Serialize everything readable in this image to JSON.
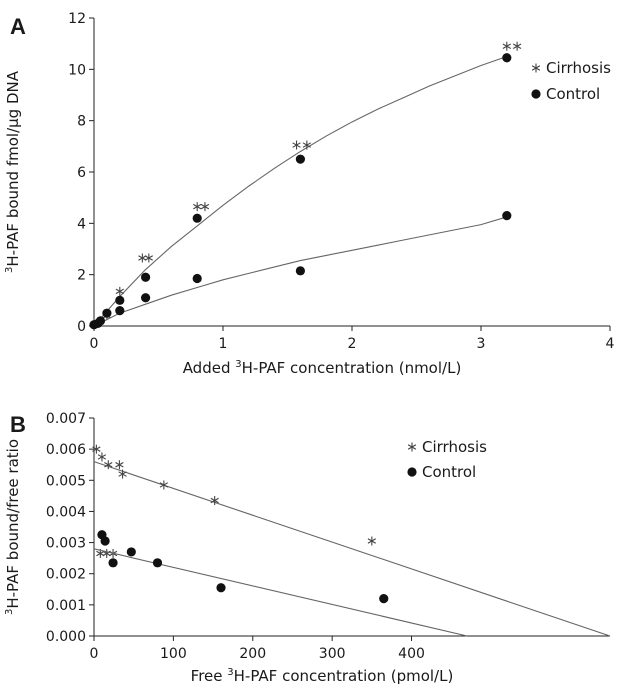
{
  "chart_data": [
    {
      "panel": "A",
      "type": "scatter",
      "xlabel": {
        "pre": "Added ",
        "sup": "3",
        "post": "H-PAF concentration (nmol/L)"
      },
      "ylabel": {
        "sup": "3",
        "post": "H-PAF bound fmol/μg DNA"
      },
      "xlim": [
        0,
        4
      ],
      "ylim": [
        0,
        12
      ],
      "x_ticks": [
        0,
        1,
        2,
        3,
        4
      ],
      "y_ticks": [
        0,
        2,
        4,
        6,
        8,
        10,
        12
      ],
      "legend_position": "top-right",
      "series": [
        {
          "name": "Cirrhosis",
          "marker": "asterisk",
          "points": [
            [
              0.02,
              0.1
            ],
            [
              0.05,
              0.2
            ],
            [
              0.1,
              0.4
            ],
            [
              0.2,
              1.35
            ],
            [
              0.375,
              2.65
            ],
            [
              0.425,
              2.65
            ],
            [
              0.8,
              4.65
            ],
            [
              0.86,
              4.65
            ],
            [
              1.57,
              7.05
            ],
            [
              1.65,
              7.05
            ],
            [
              3.2,
              10.9
            ],
            [
              3.28,
              10.9
            ]
          ],
          "fit": [
            [
              0,
              0
            ],
            [
              0.2,
              1.15
            ],
            [
              0.4,
              2.2
            ],
            [
              0.6,
              3.1
            ],
            [
              0.8,
              3.9
            ],
            [
              1.0,
              4.7
            ],
            [
              1.2,
              5.45
            ],
            [
              1.4,
              6.15
            ],
            [
              1.6,
              6.8
            ],
            [
              1.8,
              7.4
            ],
            [
              2.0,
              7.95
            ],
            [
              2.2,
              8.45
            ],
            [
              2.4,
              8.9
            ],
            [
              2.6,
              9.35
            ],
            [
              2.8,
              9.75
            ],
            [
              3.0,
              10.15
            ],
            [
              3.2,
              10.5
            ]
          ]
        },
        {
          "name": "Control",
          "marker": "dot",
          "points": [
            [
              0,
              0.05
            ],
            [
              0.03,
              0.1
            ],
            [
              0.05,
              0.2
            ],
            [
              0.1,
              0.5
            ],
            [
              0.2,
              0.6
            ],
            [
              0.2,
              1.0
            ],
            [
              0.4,
              1.1
            ],
            [
              0.4,
              1.9
            ],
            [
              0.8,
              1.85
            ],
            [
              0.8,
              4.2
            ],
            [
              1.6,
              2.15
            ],
            [
              1.6,
              6.5
            ],
            [
              3.2,
              4.3
            ],
            [
              3.2,
              10.45
            ]
          ],
          "fit": [
            [
              0,
              0
            ],
            [
              0.2,
              0.5
            ],
            [
              0.4,
              0.85
            ],
            [
              0.6,
              1.2
            ],
            [
              0.8,
              1.5
            ],
            [
              1.0,
              1.8
            ],
            [
              1.2,
              2.05
            ],
            [
              1.4,
              2.3
            ],
            [
              1.6,
              2.55
            ],
            [
              1.8,
              2.75
            ],
            [
              2.0,
              2.95
            ],
            [
              2.2,
              3.15
            ],
            [
              2.4,
              3.35
            ],
            [
              2.6,
              3.55
            ],
            [
              2.8,
              3.75
            ],
            [
              3.0,
              3.95
            ],
            [
              3.2,
              4.25
            ]
          ]
        }
      ]
    },
    {
      "panel": "B",
      "type": "scatter",
      "xlabel": {
        "pre": "Free ",
        "sup": "3",
        "post": "H-PAF concentration (pmol/L)"
      },
      "ylabel": {
        "sup": "3",
        "post": "H-PAF bound/free ratio"
      },
      "xlim": [
        0,
        650
      ],
      "ylim": [
        0,
        0.007
      ],
      "x_ticks": [
        0,
        100,
        200,
        300,
        400
      ],
      "y_ticks": [
        "0.000",
        "0.001",
        "0.002",
        "0.003",
        "0.004",
        "0.005",
        "0.006",
        "0.007"
      ],
      "legend_position": "top-right",
      "series": [
        {
          "name": "Cirrhosis",
          "marker": "asterisk",
          "points": [
            [
              3,
              0.006
            ],
            [
              10,
              0.00575
            ],
            [
              18,
              0.0055
            ],
            [
              32,
              0.0055
            ],
            [
              36,
              0.0052
            ],
            [
              88,
              0.00485
            ],
            [
              152,
              0.00435
            ],
            [
              350,
              0.00305
            ],
            [
              8,
              0.00265
            ],
            [
              16,
              0.00265
            ],
            [
              24,
              0.00265
            ]
          ],
          "fit": [
            [
              0,
              0.0056
            ],
            [
              650,
              0.0
            ]
          ]
        },
        {
          "name": "Control",
          "marker": "dot",
          "points": [
            [
              10,
              0.00325
            ],
            [
              14,
              0.00305
            ],
            [
              24,
              0.00235
            ],
            [
              47,
              0.0027
            ],
            [
              80,
              0.00235
            ],
            [
              160,
              0.00155
            ],
            [
              365,
              0.0012
            ]
          ],
          "fit": [
            [
              0,
              0.0028
            ],
            [
              470,
              0.0
            ]
          ]
        }
      ]
    }
  ]
}
